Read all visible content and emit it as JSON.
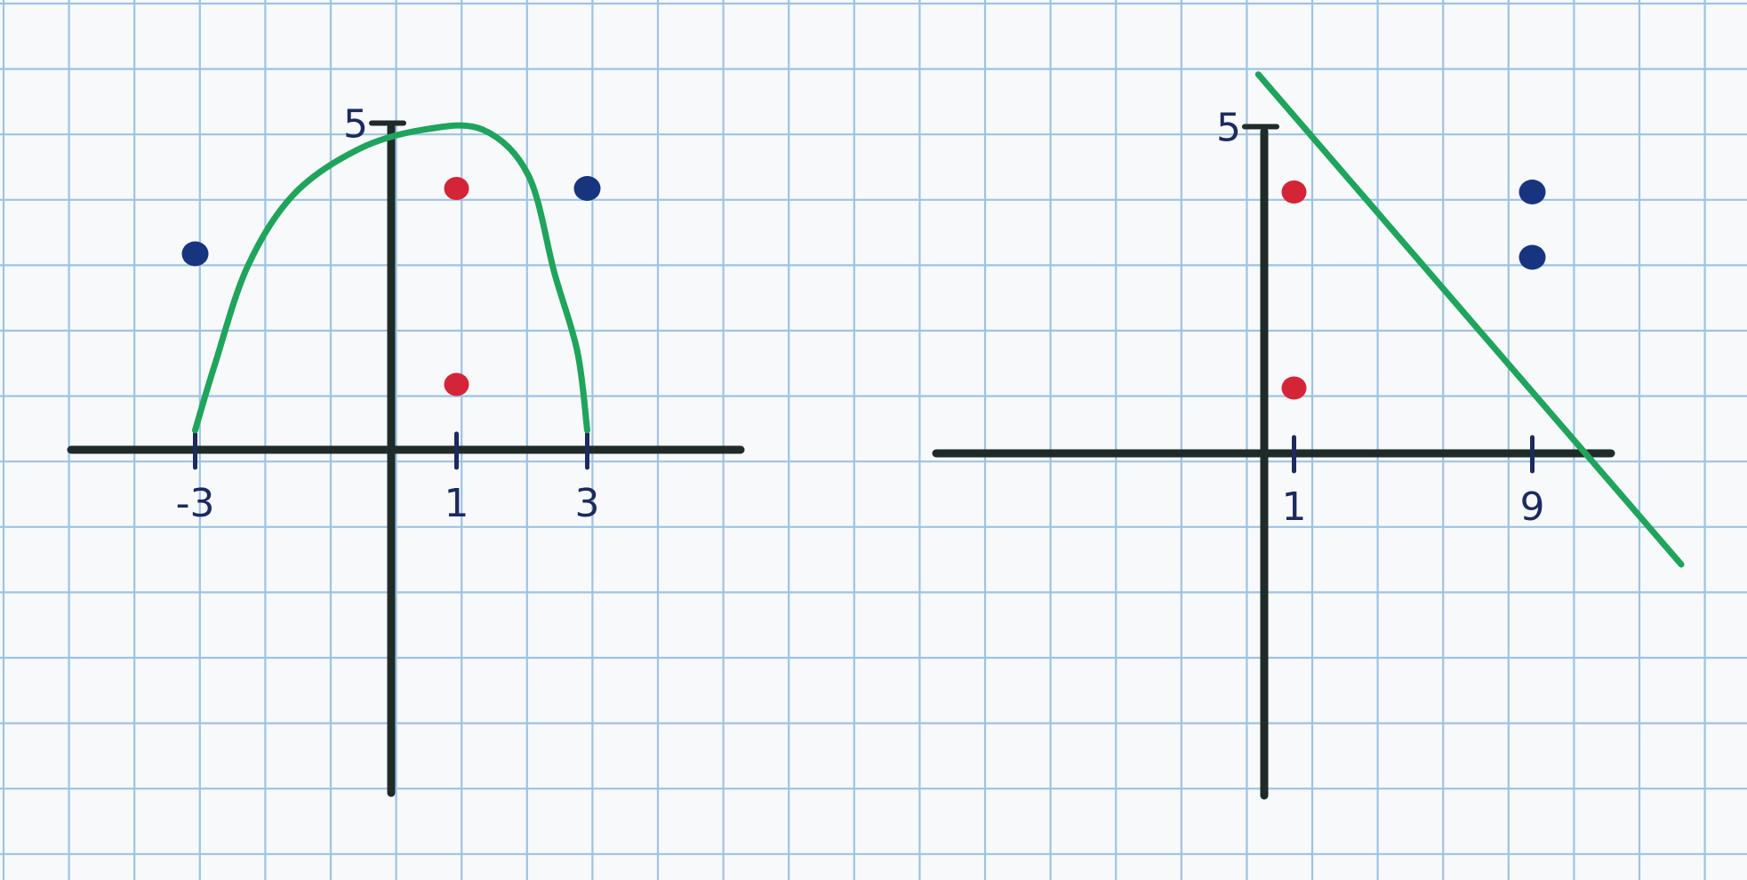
{
  "colors": {
    "paper": "#f7f9fb",
    "grid": "#9ec3e2",
    "axis": "#1e2b28",
    "curve": "#1fa45c",
    "red_point": "#d42538",
    "blue_point": "#17357f",
    "ink": "#1c2a5e"
  },
  "chart_data": [
    {
      "type": "scatter",
      "name": "left-plot",
      "x_ticks": [
        {
          "value": -3,
          "label": "-3"
        },
        {
          "value": 1,
          "label": "1"
        },
        {
          "value": 3,
          "label": "3"
        }
      ],
      "y_ticks": [
        {
          "value": 5,
          "label": "5"
        }
      ],
      "red_points": [
        {
          "x": 1,
          "y": 4
        },
        {
          "x": 1,
          "y": 1
        }
      ],
      "blue_points": [
        {
          "x": -3,
          "y": 3
        },
        {
          "x": 3,
          "y": 4
        }
      ],
      "curve": {
        "shape": "arch",
        "points": [
          [
            -3,
            0.3
          ],
          [
            -2.7,
            1.3
          ],
          [
            -2.2,
            2.8
          ],
          [
            -1.5,
            3.9
          ],
          [
            -0.5,
            4.6
          ],
          [
            0.5,
            4.9
          ],
          [
            1.4,
            4.9
          ],
          [
            2.1,
            4.2
          ],
          [
            2.5,
            2.7
          ],
          [
            2.85,
            1.5
          ],
          [
            3,
            0.3
          ]
        ]
      },
      "xlim": [
        -5.1,
        5.3
      ],
      "ylim": [
        -5.4,
        5.3
      ],
      "grid": true
    },
    {
      "type": "scatter",
      "name": "right-plot",
      "x_ticks": [
        {
          "value": 1,
          "label": "1"
        },
        {
          "value": 9,
          "label": "9"
        }
      ],
      "y_ticks": [
        {
          "value": 5,
          "label": "5"
        }
      ],
      "red_points": [
        {
          "x": 1,
          "y": 4
        },
        {
          "x": 1,
          "y": 1
        }
      ],
      "blue_points": [
        {
          "x": 9,
          "y": 4
        },
        {
          "x": 9,
          "y": 3
        }
      ],
      "curve": {
        "shape": "line",
        "points": [
          [
            -0.2,
            5.8
          ],
          [
            14,
            -1.7
          ]
        ]
      },
      "xlim": [
        -10,
        14.5
      ],
      "ylim": [
        -5.4,
        5.8
      ],
      "grid": true
    }
  ]
}
